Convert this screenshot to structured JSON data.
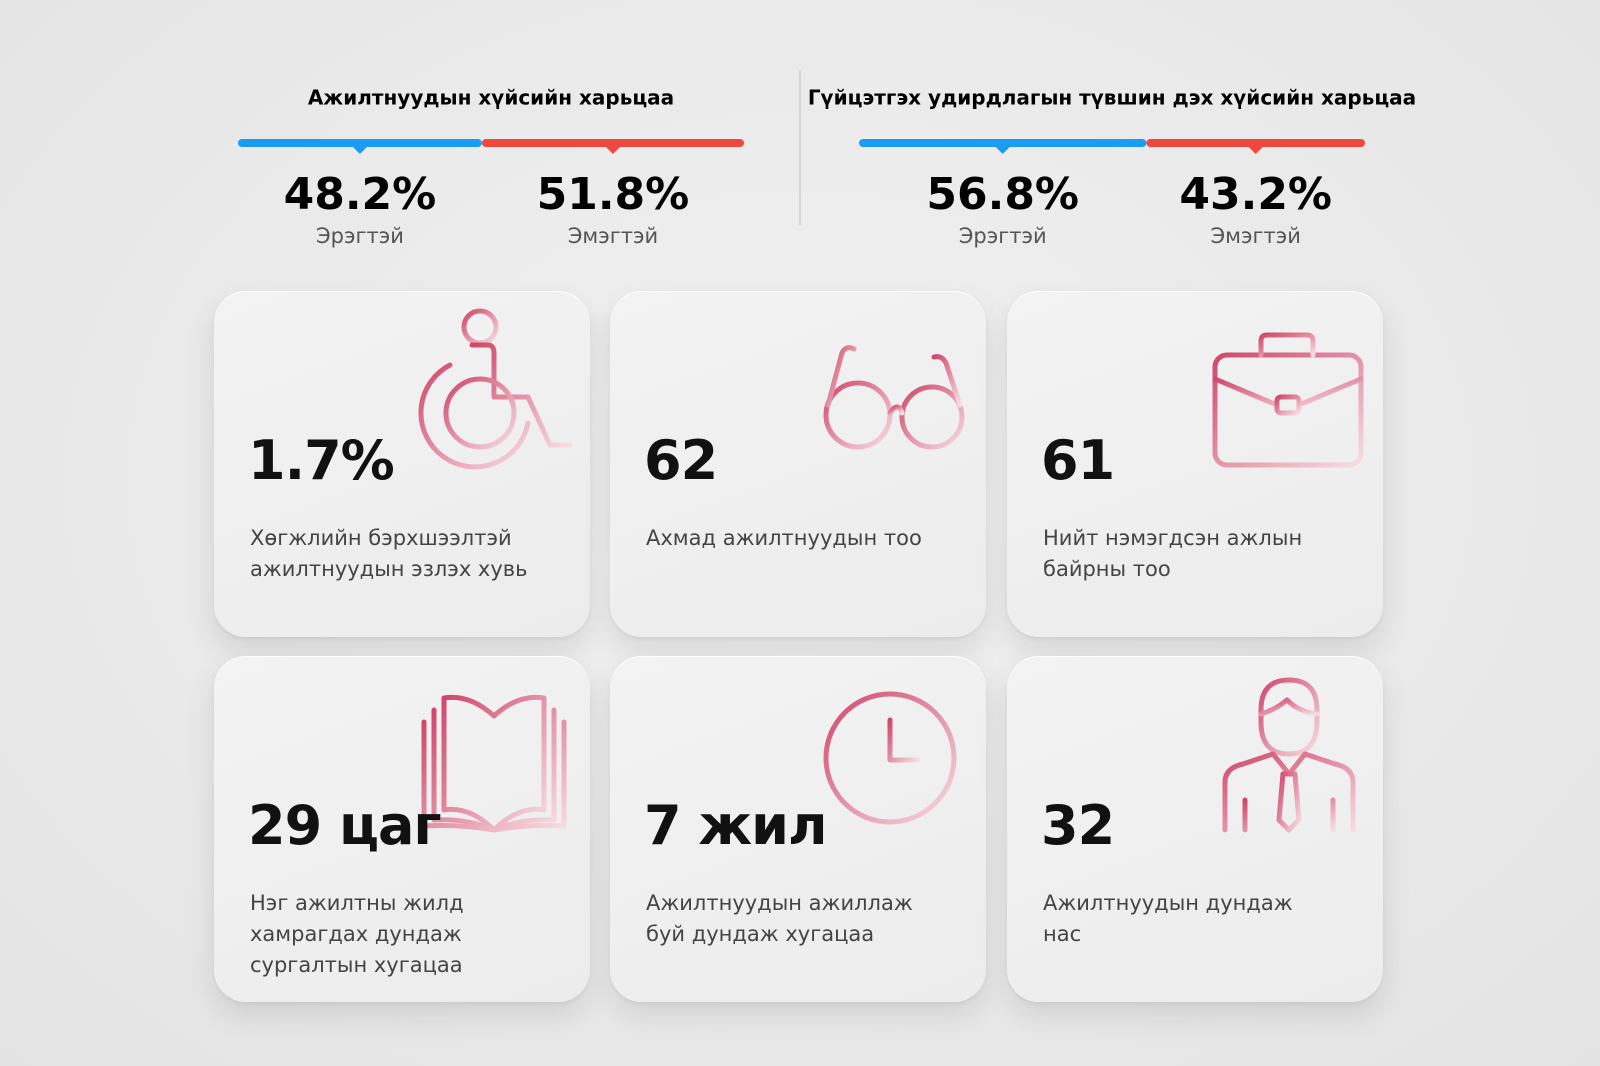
{
  "gender_ratios": [
    {
      "title": "Ажилтнуудын хүйсийн харьцаа",
      "segments": [
        {
          "value": 48.2,
          "label": "48.2%",
          "name": "Эрэгтэй",
          "color": "#1b9cf0"
        },
        {
          "value": 51.8,
          "label": "51.8%",
          "name": "Эмэгтэй",
          "color": "#f0473f"
        }
      ]
    },
    {
      "title": "Гүйцэтгэх удирдлагын түвшин дэх хүйсийн харьцаа",
      "segments": [
        {
          "value": 56.8,
          "label": "56.8%",
          "name": "Эрэгтэй",
          "color": "#1b9cf0"
        },
        {
          "value": 43.2,
          "label": "43.2%",
          "name": "Эмэгтэй",
          "color": "#f0473f"
        }
      ]
    }
  ],
  "cards": [
    {
      "value": "1.7%",
      "description": "Хөгжлийн бэрхшээлтэй ажилтнуудын эзлэх хувь"
    },
    {
      "value": "62",
      "description": "Ахмад ажилтнуудын тоо"
    },
    {
      "value": "61",
      "description": "Нийт нэмэгдсэн ажлын байрны тоо"
    },
    {
      "value": "29 цаг",
      "description": "Нэг ажилтны жилд хамрагдах дундаж сургалтын хугацаа"
    },
    {
      "value": "7 жил",
      "description": "Ажилтнуудын ажиллаж буй дундаж хугацаа"
    },
    {
      "value": "32",
      "description": "Ажилтнуудын дундаж нас"
    }
  ]
}
